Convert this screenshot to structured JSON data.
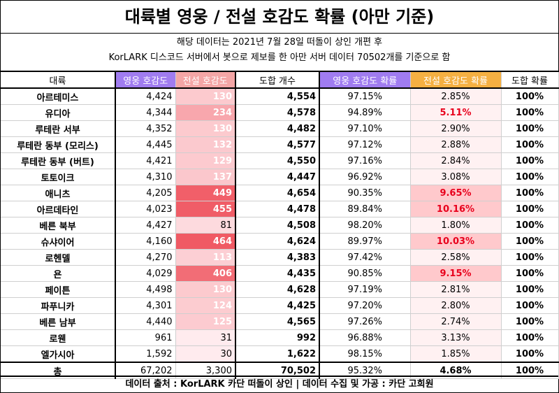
{
  "title": "대륙별 영웅 / 전설 호감도 확률 (아만 기준)",
  "subtitle_line1": "해당 데이터는 2021년 7월 28일 떠돌이 상인 개편 후",
  "subtitle_line2": "KorLARK 디스코드 서버에서 봇으로 제보를 한 아만 서버 데이터 70502개를 기준으로 함",
  "headers": [
    "대륙",
    "영웅 호감도",
    "전설 호감도",
    "도합 개수",
    "영웅 호감도 확률",
    "전설 호감도 확률",
    "도합 확률"
  ],
  "rows": [
    {
      "name": "아르테미스",
      "hero": "4,424",
      "legend": "130",
      "total": "4,554",
      "hero_p": "97.15%",
      "legend_p": "2.85%",
      "total_p": "100%"
    },
    {
      "name": "유디아",
      "hero": "4,344",
      "legend": "234",
      "total": "4,578",
      "hero_p": "94.89%",
      "legend_p": "5.11%",
      "total_p": "100%"
    },
    {
      "name": "루테란 서부",
      "hero": "4,352",
      "legend": "130",
      "total": "4,482",
      "hero_p": "97.10%",
      "legend_p": "2.90%",
      "total_p": "100%"
    },
    {
      "name": "루테란 동부 (모리스)",
      "hero": "4,445",
      "legend": "132",
      "total": "4,577",
      "hero_p": "97.12%",
      "legend_p": "2.88%",
      "total_p": "100%"
    },
    {
      "name": "루테란 동부 (버트)",
      "hero": "4,421",
      "legend": "129",
      "total": "4,550",
      "hero_p": "97.16%",
      "legend_p": "2.84%",
      "total_p": "100%"
    },
    {
      "name": "토토이크",
      "hero": "4,310",
      "legend": "137",
      "total": "4,447",
      "hero_p": "96.92%",
      "legend_p": "3.08%",
      "total_p": "100%"
    },
    {
      "name": "애니츠",
      "hero": "4,205",
      "legend": "449",
      "total": "4,654",
      "hero_p": "90.35%",
      "legend_p": "9.65%",
      "total_p": "100%"
    },
    {
      "name": "아르데타인",
      "hero": "4,023",
      "legend": "455",
      "total": "4,478",
      "hero_p": "89.84%",
      "legend_p": "10.16%",
      "total_p": "100%"
    },
    {
      "name": "베른 북부",
      "hero": "4,427",
      "legend": "81",
      "total": "4,508",
      "hero_p": "98.20%",
      "legend_p": "1.80%",
      "total_p": "100%"
    },
    {
      "name": "슈샤이어",
      "hero": "4,160",
      "legend": "464",
      "total": "4,624",
      "hero_p": "89.97%",
      "legend_p": "10.03%",
      "total_p": "100%"
    },
    {
      "name": "로헨델",
      "hero": "4,270",
      "legend": "113",
      "total": "4,383",
      "hero_p": "97.42%",
      "legend_p": "2.58%",
      "total_p": "100%"
    },
    {
      "name": "욘",
      "hero": "4,029",
      "legend": "406",
      "total": "4,435",
      "hero_p": "90.85%",
      "legend_p": "9.15%",
      "total_p": "100%"
    },
    {
      "name": "페이튼",
      "hero": "4,498",
      "legend": "130",
      "total": "4,628",
      "hero_p": "97.19%",
      "legend_p": "2.81%",
      "total_p": "100%"
    },
    {
      "name": "파푸니카",
      "hero": "4,301",
      "legend": "124",
      "total": "4,425",
      "hero_p": "97.20%",
      "legend_p": "2.80%",
      "total_p": "100%"
    },
    {
      "name": "베른 남부",
      "hero": "4,440",
      "legend": "125",
      "total": "4,565",
      "hero_p": "97.26%",
      "legend_p": "2.74%",
      "total_p": "100%"
    },
    {
      "name": "로웬",
      "hero": "961",
      "legend": "31",
      "total": "992",
      "hero_p": "96.88%",
      "legend_p": "3.13%",
      "total_p": "100%"
    },
    {
      "name": "엘가시아",
      "hero": "1,592",
      "legend": "30",
      "total": "1,622",
      "hero_p": "98.15%",
      "legend_p": "1.85%",
      "total_p": "100%"
    }
  ],
  "total_row": {
    "name": "총",
    "hero": "67,202",
    "legend": "3,300",
    "total": "70,502",
    "hero_p": "95.32%",
    "legend_p": "4.68%",
    "total_p": "100%"
  },
  "footer": "데이터 출처 : KorLARK 카단 떠돌이 상인   |   데이터 수집 및 가공 : 카단 고희원",
  "colors": {
    "hero_header": "#a07cf0",
    "legend_header": "#f4a6a6",
    "legend_p_header": "#f5b042",
    "highlight_text": "#e8001c"
  }
}
